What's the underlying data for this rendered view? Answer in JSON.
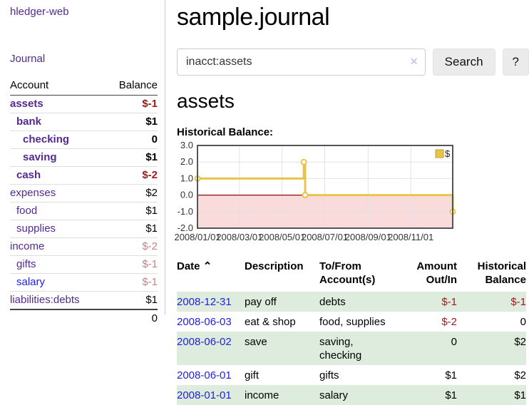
{
  "app": {
    "brand": "hledger-web"
  },
  "sidebar": {
    "journal_link": "Journal",
    "accounts_table": {
      "col_account": "Account",
      "col_balance": "Balance",
      "rows": [
        {
          "name": "assets",
          "depth": 1,
          "bold": true,
          "balance": "$-1",
          "tone": "negative-strong",
          "link": "purple"
        },
        {
          "name": "bank",
          "depth": 2,
          "bold": true,
          "balance": "$1",
          "tone": "normal",
          "link": "purple"
        },
        {
          "name": "checking",
          "depth": 3,
          "bold": true,
          "balance": "0",
          "tone": "normal",
          "link": "purple"
        },
        {
          "name": "saving",
          "depth": 3,
          "bold": true,
          "balance": "$1",
          "tone": "normal",
          "link": "purple"
        },
        {
          "name": "cash",
          "depth": 2,
          "bold": true,
          "balance": "$-2",
          "tone": "negative-strong",
          "link": "purple"
        },
        {
          "name": "expenses",
          "depth": 1,
          "bold": false,
          "balance": "$2",
          "tone": "normal",
          "link": "purple"
        },
        {
          "name": "food",
          "depth": 2,
          "bold": false,
          "balance": "$1",
          "tone": "normal",
          "link": "purple"
        },
        {
          "name": "supplies",
          "depth": 2,
          "bold": false,
          "balance": "$1",
          "tone": "normal",
          "link": "purple"
        },
        {
          "name": "income",
          "depth": 1,
          "bold": false,
          "balance": "$-2",
          "tone": "negative-soft",
          "link": "purple"
        },
        {
          "name": "gifts",
          "depth": 2,
          "bold": false,
          "balance": "$-1",
          "tone": "negative-soft",
          "link": "purple"
        },
        {
          "name": "salary",
          "depth": 2,
          "bold": false,
          "balance": "$-1",
          "tone": "negative-soft",
          "link": "blue"
        },
        {
          "name": "liabilities:debts",
          "depth": 1,
          "bold": false,
          "balance": "$1",
          "tone": "normal",
          "link": "purple"
        }
      ],
      "total": "0"
    }
  },
  "main": {
    "title": "sample.journal",
    "search": {
      "value": "inacct:assets",
      "clear_icon": "✕",
      "search_button": "Search",
      "help_button": "?"
    },
    "account_heading": "assets",
    "chart_title": "Historical Balance:",
    "register": {
      "columns": [
        {
          "label": "Date",
          "sort_icon": "⌃"
        },
        {
          "label": "Description"
        },
        {
          "label": "To/From Account(s)"
        },
        {
          "label": "Amount Out/In"
        },
        {
          "label": "Historical Balance"
        }
      ],
      "rows": [
        {
          "date": "2008-12-31",
          "description": "pay off",
          "accounts": "debts",
          "amount": "$-1",
          "amount_negative": true,
          "balance": "$-1",
          "balance_negative": true
        },
        {
          "date": "2008-06-03",
          "description": "eat & shop",
          "accounts": "food, supplies",
          "amount": "$-2",
          "amount_negative": true,
          "balance": "0",
          "balance_negative": false
        },
        {
          "date": "2008-06-02",
          "description": "save",
          "accounts": "saving, checking",
          "amount": "0",
          "amount_negative": false,
          "balance": "$2",
          "balance_negative": false
        },
        {
          "date": "2008-06-01",
          "description": "gift",
          "accounts": "gifts",
          "amount": "$1",
          "amount_negative": false,
          "balance": "$2",
          "balance_negative": false
        },
        {
          "date": "2008-01-01",
          "description": "income",
          "accounts": "salary",
          "amount": "$1",
          "amount_negative": false,
          "balance": "$1",
          "balance_negative": false
        }
      ]
    }
  },
  "chart_data": {
    "type": "line",
    "step": true,
    "series": [
      {
        "name": "$",
        "color": "#e9c44d",
        "points": [
          [
            "2008-01-01",
            1
          ],
          [
            "2008-06-01",
            2
          ],
          [
            "2008-06-03",
            0
          ],
          [
            "2008-12-31",
            -1
          ]
        ]
      }
    ],
    "x_range": [
      "2008-01-01",
      "2008-12-31"
    ],
    "ylim": [
      -2,
      3
    ],
    "y_ticks": [
      3.0,
      2.0,
      1.0,
      0.0,
      -1.0,
      -2.0
    ],
    "x_ticks": [
      {
        "date": "2008-01-01",
        "label": "2008/01/01"
      },
      {
        "date": "2008-03-01",
        "label": "2008/03/01"
      },
      {
        "date": "2008-05-01",
        "label": "2008/05/01"
      },
      {
        "date": "2008-07-01",
        "label": "2008/07/01"
      },
      {
        "date": "2008-09-01",
        "label": "2008/09/01"
      },
      {
        "date": "2008-11-01",
        "label": "2008/11/01"
      }
    ],
    "grid": true,
    "legend": {
      "label": "$",
      "position": "top-right"
    },
    "title": "Historical Balance:",
    "negative_fill": "#fadbdb",
    "zero_line_color": "#8e0c0c",
    "grid_color": "#e2e2e2",
    "border_color": "#555555"
  },
  "colors": {
    "link_purple": "#552a90",
    "link_blue": "#2222dd",
    "negative_strong": "#9e1919",
    "negative_soft": "#c88383",
    "row_stripe_green": "#ddecdd",
    "series_gold": "#e9c44d"
  }
}
